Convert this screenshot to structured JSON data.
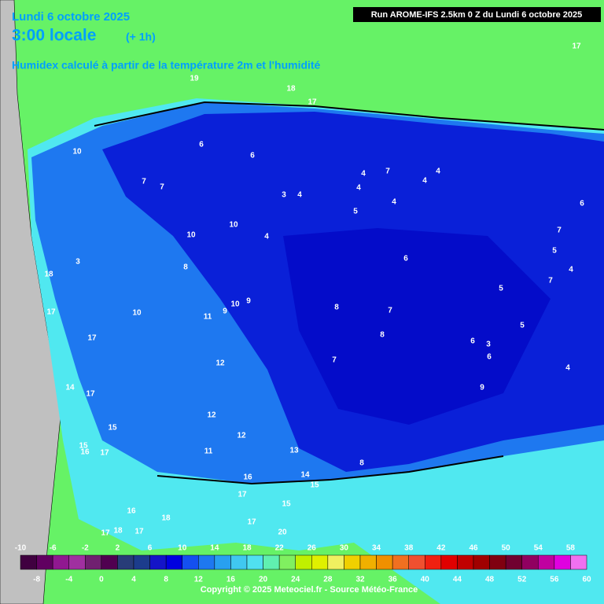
{
  "header": {
    "date": "Lundi 6 octobre 2025",
    "time": "3:00 locale",
    "lead": "(+ 1h)",
    "subtitle": "Humidex calculé à partir de la température 2m et l'humidité",
    "run": "Run AROME-IFS 2.5km 0 Z du Lundi 6 octobre 2025"
  },
  "colorbar": {
    "ticks": [
      -10,
      -8,
      -6,
      -4,
      -2,
      0,
      2,
      4,
      6,
      8,
      10,
      12,
      14,
      16,
      18,
      20,
      22,
      24,
      26,
      28,
      30,
      32,
      34,
      36,
      38,
      40,
      42,
      44,
      46,
      48,
      50,
      52,
      54,
      56,
      58,
      60
    ],
    "colors": [
      "#400040",
      "#600060",
      "#901890",
      "#a030a0",
      "#702070",
      "#500050",
      "#283c78",
      "#1c3c8c",
      "#1414c8",
      "#0000e0",
      "#1450f0",
      "#1e78f0",
      "#28a0f0",
      "#40c8f0",
      "#50e0f0",
      "#60f0b0",
      "#80f060",
      "#c0f000",
      "#e0f000",
      "#f0f060",
      "#f0d000",
      "#f0b000",
      "#f09000",
      "#f07020",
      "#f05030",
      "#f02010",
      "#e00000",
      "#c00000",
      "#a00000",
      "#800010",
      "#700030",
      "#900060",
      "#c000a0",
      "#e000e0",
      "#f070f0"
    ]
  },
  "map_labels": [
    "19",
    "18",
    "17",
    "17",
    "10",
    "6",
    "6",
    "7",
    "7",
    "3",
    "4",
    "4",
    "7",
    "4",
    "4",
    "4",
    "4",
    "5",
    "6",
    "7",
    "5",
    "4",
    "10",
    "10",
    "4",
    "6",
    "3",
    "8",
    "18",
    "5",
    "7",
    "10",
    "9",
    "8",
    "7",
    "17",
    "10",
    "9",
    "11",
    "5",
    "17",
    "8",
    "6",
    "3",
    "6",
    "7",
    "12",
    "4",
    "14",
    "17",
    "9",
    "12",
    "15",
    "12",
    "15",
    "16",
    "17",
    "11",
    "13",
    "8",
    "14",
    "16",
    "15",
    "17",
    "15",
    "16",
    "18",
    "17",
    "17",
    "18",
    "17",
    "20"
  ],
  "copyright": "Copyright © 2025 Meteociel.fr - Source Météo-France"
}
